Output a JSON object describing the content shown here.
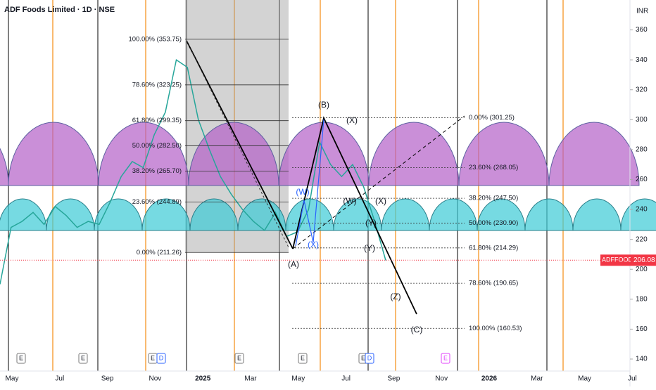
{
  "chart_data": {
    "type": "line",
    "title": "ADF Foods Limited · 1D · NSE",
    "currency": "INR",
    "ylim": [
      132,
      380
    ],
    "yticks": [
      140,
      160,
      180,
      200,
      220,
      240,
      260,
      280,
      300,
      320,
      340,
      360
    ],
    "x_axis_labels": [
      "May",
      "Jul",
      "Sep",
      "Nov",
      "2025",
      "Mar",
      "May",
      "Jul",
      "Sep",
      "Nov",
      "2026",
      "Mar",
      "May",
      "Jul"
    ],
    "series": [
      {
        "name": "ADFFOODS",
        "color": "#26a69a",
        "values": [
          190,
          228,
          232,
          238,
          230,
          242,
          236,
          228,
          232,
          230,
          245,
          262,
          272,
          268,
          290,
          305,
          340,
          335,
          300,
          280,
          262,
          250,
          240,
          232,
          226,
          238,
          222,
          225,
          240,
          285,
          270,
          262,
          270,
          255,
          232,
          206
        ]
      }
    ],
    "last_price": 206.08,
    "fib_left": [
      {
        "label": "100.00% (353.75)",
        "value": 353.75
      },
      {
        "label": "78.60% (323.25)",
        "value": 323.25
      },
      {
        "label": "61.80% (299.35)",
        "value": 299.35
      },
      {
        "label": "50.00% (282.50)",
        "value": 282.5
      },
      {
        "label": "38.20% (265.70)",
        "value": 265.7
      },
      {
        "label": "23.60% (244.89)",
        "value": 244.89
      },
      {
        "label": "0.00% (211.26)",
        "value": 211.26
      }
    ],
    "fib_right": [
      {
        "label": "0.00% (301.25)",
        "value": 301.25
      },
      {
        "label": "23.60% (268.05)",
        "value": 268.05
      },
      {
        "label": "38.20% (247.50)",
        "value": 247.5
      },
      {
        "label": "50.00% (230.90)",
        "value": 230.9
      },
      {
        "label": "61.80% (214.29)",
        "value": 214.29
      },
      {
        "label": "78.60% (190.65)",
        "value": 190.65
      },
      {
        "label": "100.00% (160.53)",
        "value": 160.53
      }
    ],
    "waves": [
      "(A)",
      "(B)",
      "(C)",
      "(W)",
      "(X)",
      "(X)",
      "(W)",
      "(Y)",
      "(X)",
      "(Y)",
      "(Z)"
    ],
    "events": [
      "E",
      "E",
      "E",
      "E",
      "E",
      "E",
      "E",
      "D",
      "D"
    ]
  }
}
